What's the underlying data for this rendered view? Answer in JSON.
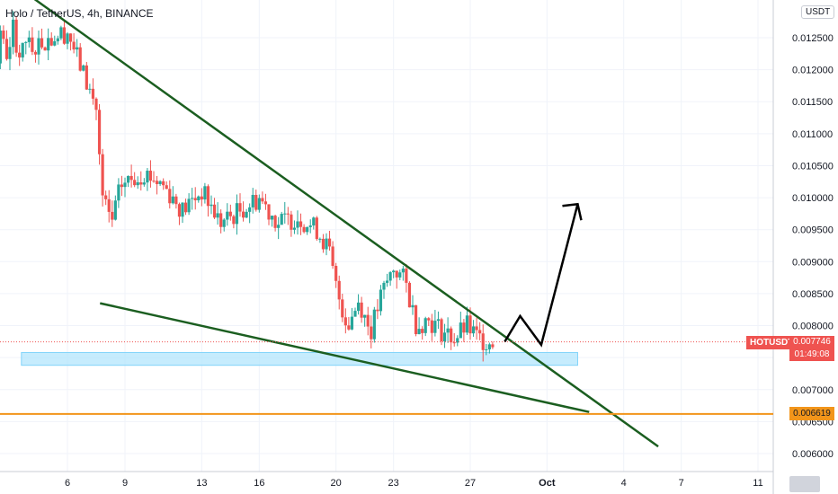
{
  "header": {
    "title": "Holo / TetherUS, 4h, BINANCE"
  },
  "price_scale": {
    "unit": "USDT",
    "symbol": "HOTUSDT",
    "last_price": "0.007746",
    "countdown": "01:49:08",
    "level_label": "0.006619"
  },
  "colors": {
    "up": "#26a69a",
    "down": "#ef5350",
    "trendline": "#1b5e20",
    "support_zone": "#b3e5fc",
    "level_line": "#f2951a",
    "projection": "#000000",
    "grid": "#f0f3fa"
  },
  "chart_data": {
    "type": "candlestick",
    "title": "Holo / TetherUS, 4h, BINANCE",
    "ylim": [
      0.0058,
      0.01305
    ],
    "y_ticks": [
      "0.006000",
      "0.006500",
      "0.007000",
      "0.007500",
      "0.008000",
      "0.008500",
      "0.009000",
      "0.009500",
      "0.010000",
      "0.010500",
      "0.011000",
      "0.011500",
      "0.012000",
      "0.012500"
    ],
    "x_ticks": [
      {
        "label": "6",
        "day": 6
      },
      {
        "label": "9",
        "day": 9
      },
      {
        "label": "13",
        "day": 13
      },
      {
        "label": "16",
        "day": 16
      },
      {
        "label": "20",
        "day": 20
      },
      {
        "label": "23",
        "day": 23
      },
      {
        "label": "27",
        "day": 27
      },
      {
        "label": "Oct",
        "day": 31,
        "bold": true
      },
      {
        "label": "4",
        "day": 35
      },
      {
        "label": "7",
        "day": 38
      },
      {
        "label": "11",
        "day": 42
      }
    ],
    "last_price": 0.007746,
    "level": 0.006619,
    "support_zone": {
      "from_day": 3.6,
      "to_day": 32.6,
      "low": 0.00738,
      "high": 0.00758
    },
    "trendlines": [
      {
        "name": "upper",
        "points": [
          [
            4.3,
            0.0131
          ],
          [
            36.8,
            0.00611
          ]
        ]
      },
      {
        "name": "lower",
        "points": [
          [
            7.7,
            0.00835
          ],
          [
            33.2,
            0.00665
          ]
        ]
      }
    ],
    "projection": [
      [
        28.8,
        0.00775
      ],
      [
        29.6,
        0.00815
      ],
      [
        30.7,
        0.0077
      ],
      [
        32.6,
        0.0099
      ]
    ],
    "key_closes": [
      {
        "day": 4.3,
        "close": 0.0124
      },
      {
        "day": 6.0,
        "close": 0.0126
      },
      {
        "day": 7.5,
        "close": 0.0114
      },
      {
        "day": 7.8,
        "close": 0.01
      },
      {
        "day": 8.3,
        "close": 0.0096
      },
      {
        "day": 8.8,
        "close": 0.0102
      },
      {
        "day": 10.0,
        "close": 0.0104
      },
      {
        "day": 11.0,
        "close": 0.0102
      },
      {
        "day": 12.0,
        "close": 0.0098
      },
      {
        "day": 13.0,
        "close": 0.0101
      },
      {
        "day": 14.0,
        "close": 0.0096
      },
      {
        "day": 15.0,
        "close": 0.0098
      },
      {
        "day": 16.0,
        "close": 0.01
      },
      {
        "day": 17.0,
        "close": 0.0096
      },
      {
        "day": 18.0,
        "close": 0.0097
      },
      {
        "day": 19.0,
        "close": 0.0095
      },
      {
        "day": 19.6,
        "close": 0.0092
      },
      {
        "day": 20.0,
        "close": 0.0086
      },
      {
        "day": 20.6,
        "close": 0.008
      },
      {
        "day": 21.2,
        "close": 0.0084
      },
      {
        "day": 21.8,
        "close": 0.0079
      },
      {
        "day": 22.4,
        "close": 0.0085
      },
      {
        "day": 23.0,
        "close": 0.0089
      },
      {
        "day": 23.6,
        "close": 0.0087
      },
      {
        "day": 24.2,
        "close": 0.008
      },
      {
        "day": 24.8,
        "close": 0.0081
      },
      {
        "day": 25.6,
        "close": 0.0079
      },
      {
        "day": 26.2,
        "close": 0.0078
      },
      {
        "day": 26.8,
        "close": 0.008
      },
      {
        "day": 27.4,
        "close": 0.0078
      },
      {
        "day": 28.0,
        "close": 0.00775
      }
    ]
  }
}
